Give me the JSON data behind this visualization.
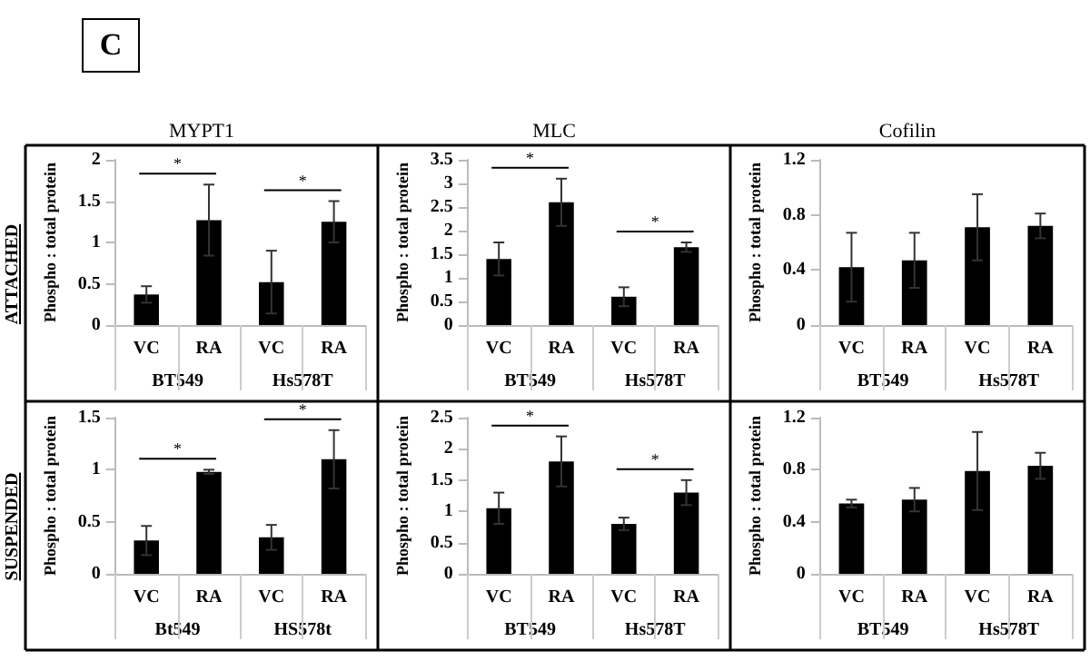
{
  "chart_data": [
    {
      "type": "bar",
      "title": "MYPT1",
      "ylabel": "Phospho : total protein",
      "categories": [
        "VC",
        "RA",
        "VC",
        "RA"
      ],
      "values": [
        0.37,
        1.27,
        0.52,
        1.25
      ],
      "errors": [
        0.1,
        0.43,
        0.38,
        0.25
      ],
      "color": "#000000",
      "ylim": [
        0,
        2
      ],
      "yticks": [
        0,
        0.5,
        1,
        1.5,
        2
      ],
      "annotations": [
        "C",
        "ATTACHED",
        "BT549",
        "Hs578T",
        "*",
        "*"
      ]
    },
    {
      "type": "bar",
      "title": "MLC",
      "ylabel": "Phospho : total protein",
      "categories": [
        "VC",
        "RA",
        "VC",
        "RA"
      ],
      "values": [
        1.4,
        2.6,
        0.6,
        1.65
      ],
      "errors": [
        0.35,
        0.5,
        0.2,
        0.1
      ],
      "color": "#000000",
      "ylim": [
        0,
        3.5
      ],
      "yticks": [
        0,
        0.5,
        1,
        1.5,
        2,
        2.5,
        3,
        3.5
      ],
      "annotations": [
        "BT549",
        "Hs578T",
        "*",
        "*"
      ]
    },
    {
      "type": "bar",
      "title": "Cofilin",
      "ylabel": "Phospho : total protein",
      "categories": [
        "VC",
        "RA",
        "VC",
        "RA"
      ],
      "values": [
        0.42,
        0.47,
        0.71,
        0.72
      ],
      "errors": [
        0.25,
        0.2,
        0.24,
        0.09
      ],
      "color": "#000000",
      "ylim": [
        0,
        1.2
      ],
      "yticks": [
        0,
        0.4,
        0.8,
        1.2
      ],
      "annotations": [
        "BT549",
        "Hs578T"
      ]
    },
    {
      "type": "bar",
      "ylabel": "Phospho : total protein",
      "categories": [
        "VC",
        "RA",
        "VC",
        "RA"
      ],
      "values": [
        0.32,
        0.98,
        0.35,
        1.1
      ],
      "errors": [
        0.14,
        0.02,
        0.12,
        0.28
      ],
      "color": "#000000",
      "ylim": [
        0,
        1.5
      ],
      "yticks": [
        0,
        0.5,
        1,
        1.5
      ],
      "annotations": [
        "SUSPENDED",
        "Bt549",
        "HS578t",
        "*",
        "*"
      ]
    },
    {
      "type": "bar",
      "ylabel": "Phospho : total protein",
      "categories": [
        "VC",
        "RA",
        "VC",
        "RA"
      ],
      "values": [
        1.05,
        1.8,
        0.8,
        1.3
      ],
      "errors": [
        0.25,
        0.4,
        0.1,
        0.2
      ],
      "color": "#000000",
      "ylim": [
        0,
        2.5
      ],
      "yticks": [
        0,
        0.5,
        1,
        1.5,
        2,
        2.5
      ],
      "annotations": [
        "BT549",
        "Hs578T",
        "*",
        "*"
      ]
    },
    {
      "type": "bar",
      "ylabel": "Phospho : total protein",
      "categories": [
        "VC",
        "RA",
        "VC",
        "RA"
      ],
      "values": [
        0.54,
        0.57,
        0.79,
        0.83
      ],
      "errors": [
        0.03,
        0.09,
        0.3,
        0.1
      ],
      "color": "#000000",
      "ylim": [
        0,
        1.2
      ],
      "yticks": [
        0,
        0.4,
        0.8,
        1.2
      ],
      "annotations": [
        "BT549",
        "Hs578T"
      ]
    }
  ]
}
